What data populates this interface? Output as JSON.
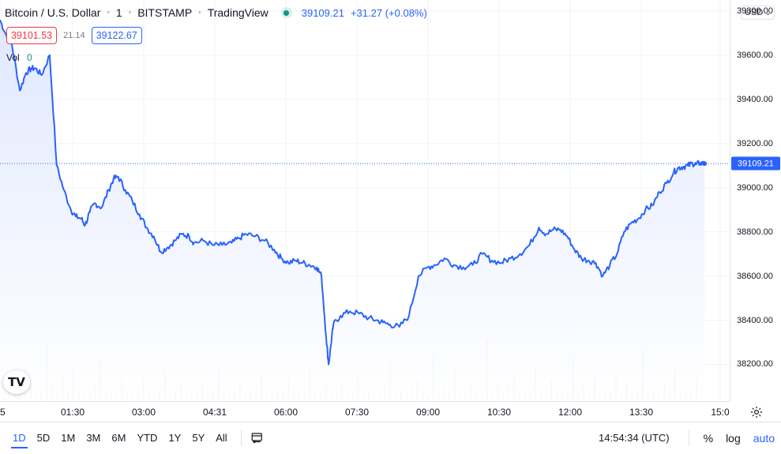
{
  "header": {
    "symbol": "Bitcoin / U.S. Dollar",
    "interval": "1",
    "exchange": "BITSTAMP",
    "source": "TradingView",
    "last_price": "39109.21",
    "change": "+31.27 (+0.08%)"
  },
  "quote": {
    "bid": "39101.53",
    "spread": "21.14",
    "ask": "39122.67"
  },
  "volume": {
    "label": "Vol",
    "value": "0"
  },
  "logo_text": "TV",
  "price_axis": {
    "currency": "USD",
    "last_label": "39109.21",
    "ticks": [
      "39800.00",
      "39600.00",
      "39400.00",
      "39200.00",
      "39000.00",
      "38800.00",
      "38600.00",
      "38400.00",
      "38200.00"
    ]
  },
  "time_axis": {
    "ticks": [
      "5",
      "01:30",
      "03:00",
      "04:31",
      "06:00",
      "07:30",
      "09:00",
      "10:30",
      "12:00",
      "13:30",
      "15:0"
    ]
  },
  "bottom": {
    "ranges": [
      {
        "label": "1D",
        "active": true
      },
      {
        "label": "5D"
      },
      {
        "label": "1M"
      },
      {
        "label": "3M"
      },
      {
        "label": "6M"
      },
      {
        "label": "YTD"
      },
      {
        "label": "1Y"
      },
      {
        "label": "5Y"
      },
      {
        "label": "All"
      }
    ],
    "clock": "14:54:34 (UTC)",
    "percent": "%",
    "log": "log",
    "auto": "auto"
  },
  "chart_data": {
    "type": "area",
    "ylim": [
      38030,
      39850
    ],
    "last_value": 39109.21,
    "series": [
      {
        "x": [
          0.0,
          0.11,
          0.25,
          0.42,
          0.55,
          0.66,
          0.75,
          0.88,
          1.05,
          1.2,
          1.35,
          1.5,
          1.6,
          1.72,
          1.8,
          1.9,
          2.0,
          2.15,
          2.3,
          2.4,
          2.5,
          2.65,
          2.8,
          2.95,
          3.1,
          3.25,
          3.4,
          3.55,
          3.7,
          3.85,
          4.0,
          4.1,
          4.3,
          4.5,
          4.7,
          4.9,
          5.05,
          5.2,
          5.4,
          5.6,
          5.8,
          5.95,
          6.1,
          6.25,
          6.4,
          6.55,
          6.7,
          6.8,
          6.9,
          6.95,
          7.0,
          7.05,
          7.2,
          7.4,
          7.6,
          7.8,
          7.95,
          8.1,
          8.25,
          8.45,
          8.65,
          8.85,
          9.05,
          9.2,
          9.4,
          9.6,
          9.8,
          10.0,
          10.2,
          10.4,
          10.6,
          10.8,
          11.0,
          11.2,
          11.4,
          11.55,
          11.7,
          11.85,
          12.0,
          12.15,
          12.3,
          12.45,
          12.6,
          12.75,
          12.9,
          13.05,
          13.2,
          13.35,
          13.5,
          13.65,
          13.8,
          13.95,
          14.1,
          14.25,
          14.35,
          14.45,
          14.55,
          14.65,
          14.72,
          14.8,
          14.9
        ],
        "values": [
          39760,
          39700,
          39650,
          39440,
          39520,
          39540,
          39540,
          39510,
          39600,
          39100,
          38990,
          38900,
          38870,
          38860,
          38830,
          38890,
          38930,
          38910,
          38990,
          39040,
          39050,
          38990,
          38940,
          38880,
          38820,
          38780,
          38710,
          38730,
          38760,
          38790,
          38780,
          38750,
          38760,
          38740,
          38740,
          38750,
          38770,
          38790,
          38780,
          38760,
          38720,
          38680,
          38660,
          38670,
          38660,
          38650,
          38640,
          38600,
          38320,
          38200,
          38290,
          38380,
          38420,
          38440,
          38430,
          38410,
          38400,
          38390,
          38380,
          38370,
          38420,
          38600,
          38640,
          38650,
          38680,
          38650,
          38640,
          38650,
          38700,
          38670,
          38660,
          38680,
          38700,
          38740,
          38820,
          38790,
          38810,
          38810,
          38780,
          38720,
          38680,
          38670,
          38660,
          38600,
          38650,
          38700,
          38800,
          38840,
          38860,
          38900,
          38920,
          38980,
          39020,
          39070,
          39090,
          39095,
          39100,
          39110,
          39105,
          39112,
          39109
        ]
      }
    ],
    "volume_bars": [
      0.05,
      0.25,
      0.12,
      0.08,
      0.35,
      0.18,
      0.06,
      0.1,
      0.55,
      0.14,
      0.07,
      0.22,
      0.09,
      0.3,
      0.12,
      0.05,
      0.08,
      0.16,
      0.4,
      0.09,
      0.06,
      0.11,
      0.21,
      0.07,
      0.05,
      0.13,
      0.19,
      0.08,
      0.06,
      0.1,
      0.28,
      0.07,
      0.09,
      0.15,
      0.05,
      0.08,
      0.12,
      0.2,
      0.06,
      0.09,
      0.33,
      0.07,
      0.05,
      0.1,
      0.18,
      0.06,
      0.08,
      0.14,
      0.26,
      0.07,
      0.05,
      0.11,
      0.09,
      0.22,
      0.06,
      0.12,
      0.08,
      0.35,
      0.07,
      0.09,
      0.15,
      0.05,
      0.1,
      0.18,
      0.06,
      0.08,
      0.24,
      0.07,
      0.12,
      0.05,
      0.09,
      0.16,
      0.38,
      0.07,
      0.1,
      0.06,
      0.13,
      0.2,
      0.08,
      0.05,
      0.45,
      0.09,
      0.12,
      0.07,
      0.3,
      0.06,
      0.08,
      0.15,
      0.1,
      0.05,
      0.6,
      0.09,
      0.14,
      0.07,
      0.18,
      0.25,
      0.06,
      0.12,
      0.08,
      0.35,
      0.1,
      0.05,
      0.2,
      0.08,
      0.13,
      0.06,
      0.42,
      0.09,
      0.16,
      0.07,
      0.28,
      0.05,
      0.11,
      0.09,
      0.24,
      0.07,
      0.15,
      0.06,
      0.1,
      0.5,
      0.08,
      0.13,
      0.05,
      0.19,
      0.07,
      0.32,
      0.09,
      0.12,
      0.06,
      0.22
    ]
  },
  "colors": {
    "line": "#2962ff",
    "area_top": "#dfe7ff",
    "vol_up": "#089981",
    "vol_down": "#f23645"
  }
}
